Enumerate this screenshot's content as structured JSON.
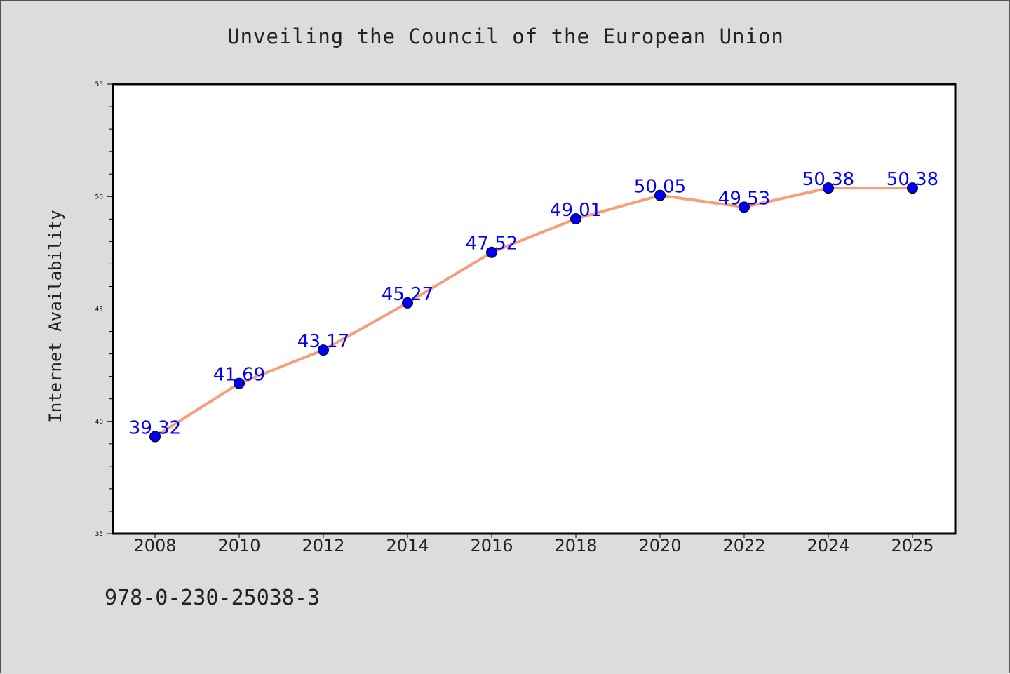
{
  "chart_data": {
    "type": "line",
    "title": "Unveiling the Council of the European Union",
    "xlabel": "",
    "ylabel": "Internet Availability",
    "categories": [
      "2008",
      "2010",
      "2012",
      "2014",
      "2016",
      "2018",
      "2020",
      "2022",
      "2024",
      "2025"
    ],
    "series": [
      {
        "values": [
          39.32,
          41.69,
          43.17,
          45.27,
          47.52,
          49.01,
          50.05,
          49.53,
          50.38,
          50.38
        ],
        "labels": [
          "39.32",
          "41.69",
          "43.17",
          "45.27",
          "47.52",
          "49.01",
          "50.05",
          "49.53",
          "50.38",
          "50.38"
        ],
        "line_color": "#f5a07a",
        "marker_color": "#0000ee",
        "label_color": "#0000ff"
      }
    ],
    "ylim": [
      35,
      55
    ],
    "yticks": [
      "35",
      "40",
      "45",
      "50",
      "55"
    ],
    "grid": false,
    "legend": "none"
  },
  "footer": {
    "isbn": "978-0-230-25038-3"
  }
}
